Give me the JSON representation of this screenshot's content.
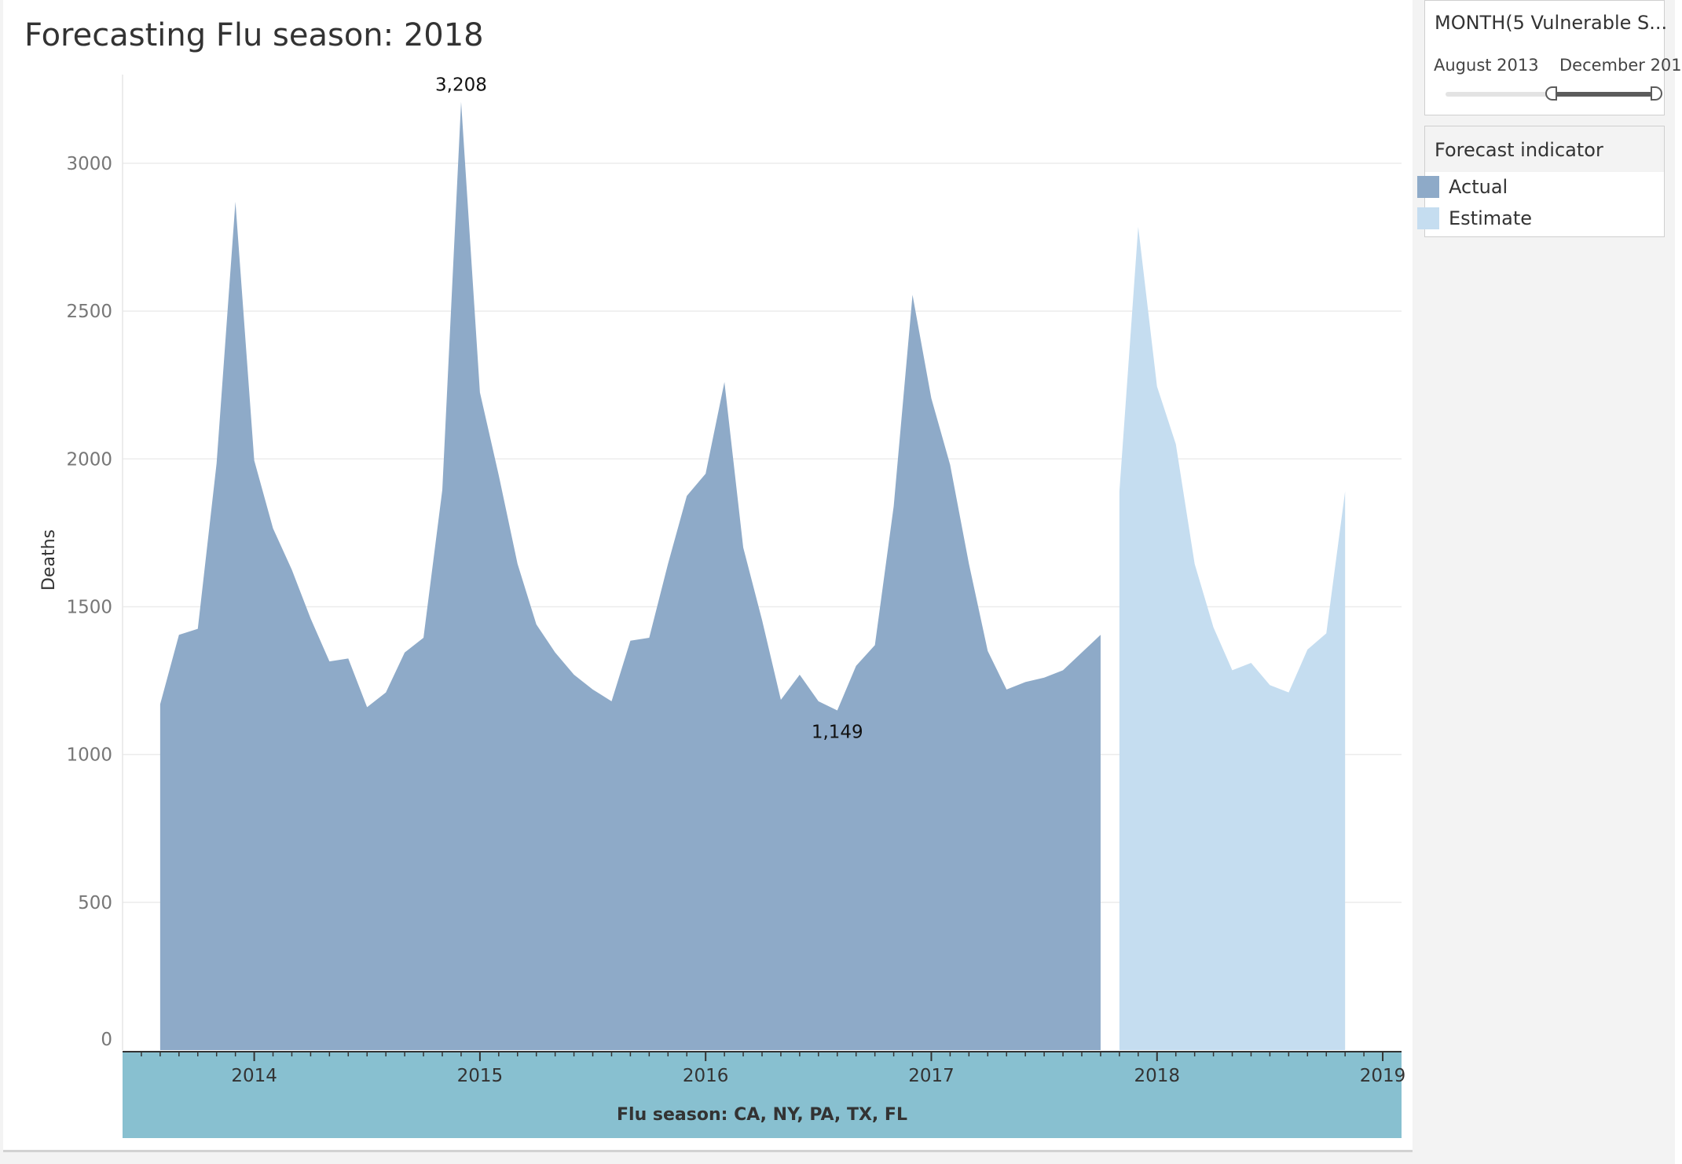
{
  "title": "Forecasting Flu season: 2018",
  "filter": {
    "title": "MONTH(5 Vulnerable S...",
    "start_label": "August 2013",
    "end_label": "December 201",
    "range_start_fraction": 0.55,
    "range_end_fraction": 1.0
  },
  "legend": {
    "title": "Forecast indicator",
    "items": [
      {
        "label": "Actual",
        "color": "#8eaac8"
      },
      {
        "label": "Estimate",
        "color": "#c5ddf0"
      }
    ]
  },
  "colors": {
    "actual": "#8eaac8",
    "estimate": "#c5ddf0",
    "x_axis_band": "#88c0d0"
  },
  "chart_data": {
    "type": "area",
    "title": "Forecasting Flu season: 2018",
    "xlabel": "Flu season: CA, NY, PA, TX, FL",
    "ylabel": "Deaths",
    "ylim": [
      0,
      3300
    ],
    "yticks": [
      0,
      500,
      1000,
      1500,
      2000,
      2500,
      3000
    ],
    "xticks": [
      "2014",
      "2015",
      "2016",
      "2017",
      "2018",
      "2019"
    ],
    "xrange": [
      "2013-06",
      "2019-02"
    ],
    "grid": true,
    "legend_position": "right",
    "series": [
      {
        "name": "Actual",
        "points": [
          [
            "2013-08",
            1170
          ],
          [
            "2013-09",
            1405
          ],
          [
            "2013-10",
            1425
          ],
          [
            "2013-11",
            1985
          ],
          [
            "2013-12",
            2870
          ],
          [
            "2014-01",
            1995
          ],
          [
            "2014-02",
            1765
          ],
          [
            "2014-03",
            1625
          ],
          [
            "2014-04",
            1460
          ],
          [
            "2014-05",
            1315
          ],
          [
            "2014-06",
            1325
          ],
          [
            "2014-07",
            1160
          ],
          [
            "2014-08",
            1210
          ],
          [
            "2014-09",
            1345
          ],
          [
            "2014-10",
            1395
          ],
          [
            "2014-11",
            1895
          ],
          [
            "2014-12",
            3208
          ],
          [
            "2015-01",
            2225
          ],
          [
            "2015-02",
            1945
          ],
          [
            "2015-03",
            1645
          ],
          [
            "2015-04",
            1440
          ],
          [
            "2015-05",
            1345
          ],
          [
            "2015-06",
            1270
          ],
          [
            "2015-07",
            1220
          ],
          [
            "2015-08",
            1180
          ],
          [
            "2015-09",
            1385
          ],
          [
            "2015-10",
            1395
          ],
          [
            "2015-11",
            1645
          ],
          [
            "2015-12",
            1875
          ],
          [
            "2016-01",
            1950
          ],
          [
            "2016-02",
            2260
          ],
          [
            "2016-03",
            1700
          ],
          [
            "2016-04",
            1455
          ],
          [
            "2016-05",
            1185
          ],
          [
            "2016-06",
            1270
          ],
          [
            "2016-07",
            1180
          ],
          [
            "2016-08",
            1149
          ],
          [
            "2016-09",
            1300
          ],
          [
            "2016-10",
            1370
          ],
          [
            "2016-11",
            1840
          ],
          [
            "2016-12",
            2555
          ],
          [
            "2017-01",
            2205
          ],
          [
            "2017-02",
            1980
          ],
          [
            "2017-03",
            1645
          ],
          [
            "2017-04",
            1350
          ],
          [
            "2017-05",
            1220
          ],
          [
            "2017-06",
            1245
          ],
          [
            "2017-07",
            1260
          ],
          [
            "2017-08",
            1285
          ],
          [
            "2017-09",
            1345
          ],
          [
            "2017-10",
            1405
          ]
        ]
      },
      {
        "name": "Estimate",
        "points": [
          [
            "2017-11",
            1890
          ],
          [
            "2017-12",
            2785
          ],
          [
            "2018-01",
            2245
          ],
          [
            "2018-02",
            2050
          ],
          [
            "2018-03",
            1645
          ],
          [
            "2018-04",
            1430
          ],
          [
            "2018-05",
            1285
          ],
          [
            "2018-06",
            1310
          ],
          [
            "2018-07",
            1235
          ],
          [
            "2018-08",
            1210
          ],
          [
            "2018-09",
            1355
          ],
          [
            "2018-10",
            1410
          ],
          [
            "2018-11",
            1890
          ]
        ]
      }
    ],
    "annotations": [
      {
        "label": "3,208",
        "x": "2014-12",
        "y": 3208,
        "position": "above"
      },
      {
        "label": "1,149",
        "x": "2016-08",
        "y": 1149,
        "position": "below"
      }
    ]
  }
}
